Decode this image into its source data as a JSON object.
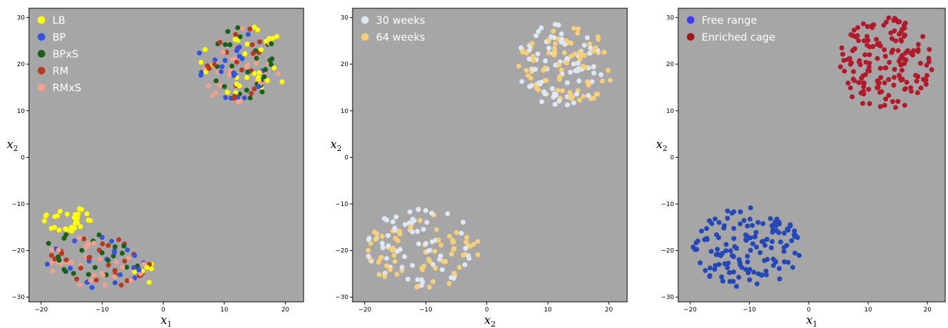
{
  "chart_data": [
    {
      "type": "scatter",
      "xlabel": "x1",
      "ylabel": "x2",
      "xlim": [
        -22,
        23
      ],
      "ylim": [
        -31,
        32
      ],
      "xticks": [
        -20,
        -10,
        0,
        10,
        20
      ],
      "yticks": [
        -30,
        -20,
        -10,
        0,
        10,
        20,
        30
      ],
      "background": "#a6a6a6",
      "legend_position": "top-left",
      "series": [
        {
          "name": "LB",
          "color": "#ffff00",
          "clusters": [
            {
              "n": 28,
              "xmin": -20,
              "xmax": -11,
              "ymin": -16,
              "ymax": -10.5
            },
            {
              "n": 6,
              "xmin": -5,
              "xmax": 0,
              "ymin": -27,
              "ymax": -21
            },
            {
              "n": 30,
              "xmin": 6,
              "xmax": 21,
              "ymin": 13,
              "ymax": 29
            }
          ]
        },
        {
          "name": "BP",
          "color": "#3355dd",
          "clusters": [
            {
              "n": 22,
              "xmin": -19,
              "xmax": -3,
              "ymin": -28,
              "ymax": -17
            },
            {
              "n": 22,
              "xmin": 5,
              "xmax": 20,
              "ymin": 12,
              "ymax": 27
            }
          ]
        },
        {
          "name": "BPxS",
          "color": "#186218",
          "clusters": [
            {
              "n": 22,
              "xmin": -20,
              "xmax": -3,
              "ymin": -27,
              "ymax": -15
            },
            {
              "n": 28,
              "xmin": 7,
              "xmax": 19,
              "ymin": 12,
              "ymax": 28
            }
          ]
        },
        {
          "name": "RM",
          "color": "#b8391e",
          "clusters": [
            {
              "n": 28,
              "xmin": -19,
              "xmax": -2,
              "ymin": -28,
              "ymax": -17
            },
            {
              "n": 20,
              "xmin": 7,
              "xmax": 18,
              "ymin": 12,
              "ymax": 28
            }
          ]
        },
        {
          "name": "RMxS",
          "color": "#f4a08c",
          "clusters": [
            {
              "n": 30,
              "xmin": -20,
              "xmax": -2,
              "ymin": -28,
              "ymax": -17
            },
            {
              "n": 30,
              "xmin": 6,
              "xmax": 19,
              "ymin": 11,
              "ymax": 28
            }
          ]
        }
      ]
    },
    {
      "type": "scatter",
      "xlabel": "x2",
      "ylabel": "x2",
      "xlim": [
        -22,
        23
      ],
      "ylim": [
        -31,
        32
      ],
      "xticks": [
        -20,
        -10,
        0,
        10,
        20
      ],
      "yticks": [
        -30,
        -20,
        -10,
        0,
        10,
        20,
        30
      ],
      "background": "#a6a6a6",
      "legend_position": "top-left",
      "series": [
        {
          "name": "30 weeks",
          "color": "#dde8f4",
          "clusters": [
            {
              "n": 65,
              "xmin": -20,
              "xmax": -2,
              "ymin": -28,
              "ymax": -10.5
            },
            {
              "n": 75,
              "xmin": 5,
              "xmax": 19,
              "ymin": 11,
              "ymax": 29
            }
          ]
        },
        {
          "name": "64 weeks",
          "color": "#f5cf7a",
          "clusters": [
            {
              "n": 70,
              "xmin": -20,
              "xmax": -1,
              "ymin": -28,
              "ymax": -12
            },
            {
              "n": 80,
              "xmin": 5,
              "xmax": 21,
              "ymin": 11,
              "ymax": 28
            }
          ]
        }
      ]
    },
    {
      "type": "scatter",
      "xlabel": "x1",
      "ylabel": "x2",
      "xlim": [
        -22,
        23
      ],
      "ylim": [
        -31,
        32
      ],
      "xticks": [
        -20,
        -10,
        0,
        10,
        20
      ],
      "yticks": [
        -30,
        -20,
        -10,
        0,
        10,
        20,
        30
      ],
      "background": "#a6a6a6",
      "legend_position": "top-left",
      "series": [
        {
          "name": "Free range",
          "color": "#2448b8",
          "legend_color": "#3a3aff",
          "clusters": [
            {
              "n": 140,
              "xmin": -20,
              "xmax": -1,
              "ymin": -28,
              "ymax": -10.5
            }
          ]
        },
        {
          "name": "Enriched cage",
          "color": "#b01a2a",
          "legend_color": "#a01818",
          "clusters": [
            {
              "n": 160,
              "xmin": 5,
              "xmax": 21,
              "ymin": 10,
              "ymax": 30
            }
          ]
        }
      ]
    }
  ]
}
